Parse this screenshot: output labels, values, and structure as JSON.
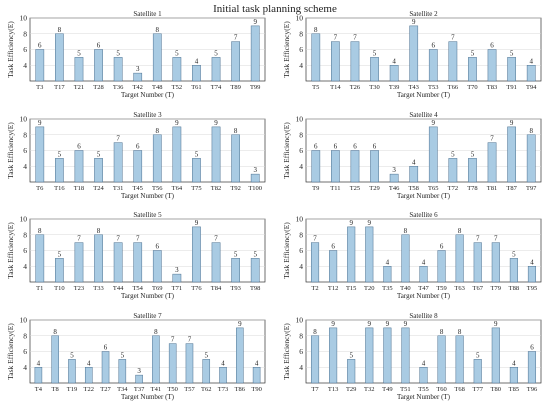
{
  "title": "Initial task planning scheme",
  "colors": {
    "bar_fill": "#a9cbe3",
    "bar_stroke": "#4a6f8f",
    "axis": "#333333",
    "grid": "#d9d9d9"
  },
  "chart_data": [
    {
      "type": "bar",
      "title": "Satellite 1",
      "xlabel": "Target Number (T)",
      "ylabel": "Task Efficiency(E)",
      "ylim": [
        2,
        10
      ],
      "yticks": [
        4,
        6,
        8,
        10
      ],
      "grid": true,
      "categories": [
        "T3",
        "T17",
        "T21",
        "T28",
        "T36",
        "T42",
        "T48",
        "T52",
        "T61",
        "T74",
        "T89",
        "T99"
      ],
      "values": [
        6,
        8,
        5,
        6,
        5,
        3,
        8,
        5,
        4,
        5,
        7,
        9
      ]
    },
    {
      "type": "bar",
      "title": "Satellite 2",
      "xlabel": "Target Number (T)",
      "ylabel": "Task Efficiency(E)",
      "ylim": [
        2,
        10
      ],
      "yticks": [
        4,
        6,
        8,
        10
      ],
      "grid": true,
      "categories": [
        "T5",
        "T14",
        "T26",
        "T30",
        "T39",
        "T43",
        "T53",
        "T66",
        "T70",
        "T83",
        "T91",
        "T94"
      ],
      "values": [
        8,
        7,
        7,
        5,
        4,
        9,
        6,
        7,
        5,
        6,
        5,
        4
      ]
    },
    {
      "type": "bar",
      "title": "Satellite 3",
      "xlabel": "Target Number (T)",
      "ylabel": "Task Efficiency(E)",
      "ylim": [
        2,
        10
      ],
      "yticks": [
        4,
        6,
        8,
        10
      ],
      "grid": true,
      "categories": [
        "T6",
        "T16",
        "T18",
        "T24",
        "T31",
        "T45",
        "T56",
        "T64",
        "T75",
        "T82",
        "T92",
        "T100"
      ],
      "values": [
        9,
        5,
        6,
        5,
        7,
        6,
        8,
        9,
        5,
        9,
        8,
        3
      ]
    },
    {
      "type": "bar",
      "title": "Satellite 4",
      "xlabel": "Target Number (T)",
      "ylabel": "Task Efficiency(E)",
      "ylim": [
        2,
        10
      ],
      "yticks": [
        4,
        6,
        8,
        10
      ],
      "grid": true,
      "categories": [
        "T9",
        "T11",
        "T25",
        "T29",
        "T46",
        "T58",
        "T65",
        "T72",
        "T78",
        "T81",
        "T87",
        "T97"
      ],
      "values": [
        6,
        6,
        6,
        6,
        3,
        4,
        9,
        5,
        5,
        7,
        9,
        8
      ]
    },
    {
      "type": "bar",
      "title": "Satellite 5",
      "xlabel": "Target Number (T)",
      "ylabel": "Task Efficiency(E)",
      "ylim": [
        2,
        10
      ],
      "yticks": [
        4,
        6,
        8,
        10
      ],
      "grid": true,
      "categories": [
        "T1",
        "T10",
        "T23",
        "T33",
        "T44",
        "T54",
        "T69",
        "T71",
        "T76",
        "T84",
        "T93",
        "T98"
      ],
      "values": [
        8,
        5,
        7,
        8,
        7,
        7,
        6,
        3,
        9,
        7,
        5,
        5
      ]
    },
    {
      "type": "bar",
      "title": "Satellite 6",
      "xlabel": "Target Number (T)",
      "ylabel": "Task Efficiency(E)",
      "ylim": [
        2,
        10
      ],
      "yticks": [
        4,
        6,
        8,
        10
      ],
      "grid": true,
      "categories": [
        "T2",
        "T12",
        "T15",
        "T20",
        "T35",
        "T40",
        "T47",
        "T59",
        "T63",
        "T67",
        "T79",
        "T88",
        "T95"
      ],
      "values": [
        7,
        6,
        9,
        9,
        4,
        8,
        4,
        6,
        8,
        7,
        7,
        5,
        4
      ]
    },
    {
      "type": "bar",
      "title": "Satellite 7",
      "xlabel": "Target Number (T)",
      "ylabel": "Task Efficiency(E)",
      "ylim": [
        2,
        10
      ],
      "yticks": [
        4,
        6,
        8,
        10
      ],
      "grid": true,
      "categories": [
        "T4",
        "T8",
        "T19",
        "T22",
        "T27",
        "T34",
        "T37",
        "T41",
        "T50",
        "T57",
        "T62",
        "T73",
        "T86",
        "T90"
      ],
      "values": [
        4,
        8,
        5,
        4,
        6,
        5,
        3,
        8,
        7,
        7,
        5,
        4,
        9,
        4
      ]
    },
    {
      "type": "bar",
      "title": "Satellite 8",
      "xlabel": "Target Number (T)",
      "ylabel": "Task Efficiency(E)",
      "ylim": [
        2,
        10
      ],
      "yticks": [
        4,
        6,
        8,
        10
      ],
      "grid": true,
      "categories": [
        "T7",
        "T13",
        "T29",
        "T32",
        "T49",
        "T51",
        "T55",
        "T60",
        "T68",
        "T77",
        "T80",
        "T85",
        "T96"
      ],
      "values": [
        8,
        9,
        5,
        9,
        9,
        9,
        4,
        8,
        8,
        5,
        9,
        4,
        6
      ]
    }
  ]
}
